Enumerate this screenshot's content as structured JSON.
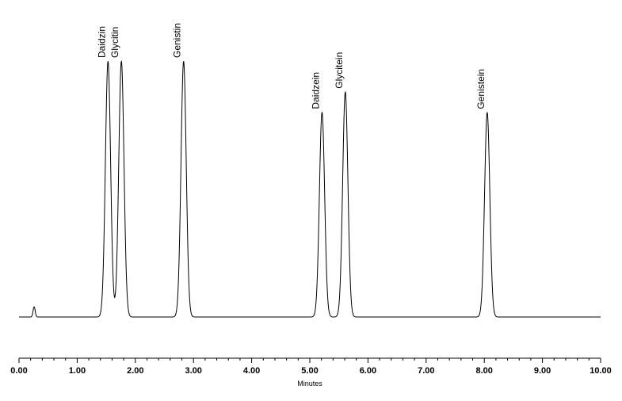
{
  "chart_data": {
    "type": "line",
    "title": "",
    "xlabel": "Minutes",
    "ylabel": "",
    "xlim": [
      0,
      10
    ],
    "ylim": [
      0,
      1.0
    ],
    "grid": false,
    "x_ticks": [
      "0.00",
      "1.00",
      "2.00",
      "3.00",
      "4.00",
      "5.00",
      "6.00",
      "7.00",
      "8.00",
      "9.00",
      "10.00"
    ],
    "baseline": 0,
    "peaks": [
      {
        "name": "Daidzin",
        "x": 1.53,
        "height": 1.0
      },
      {
        "name": "Glycitin",
        "x": 1.76,
        "height": 1.0
      },
      {
        "name": "Genistin",
        "x": 2.83,
        "height": 1.0
      },
      {
        "name": "Daidzein",
        "x": 5.21,
        "height": 0.8
      },
      {
        "name": "Glycitein",
        "x": 5.61,
        "height": 0.88
      },
      {
        "name": "Genistein",
        "x": 8.05,
        "height": 0.8
      }
    ],
    "minor_peaks": [
      {
        "x": 0.26,
        "height": 0.04
      }
    ]
  }
}
